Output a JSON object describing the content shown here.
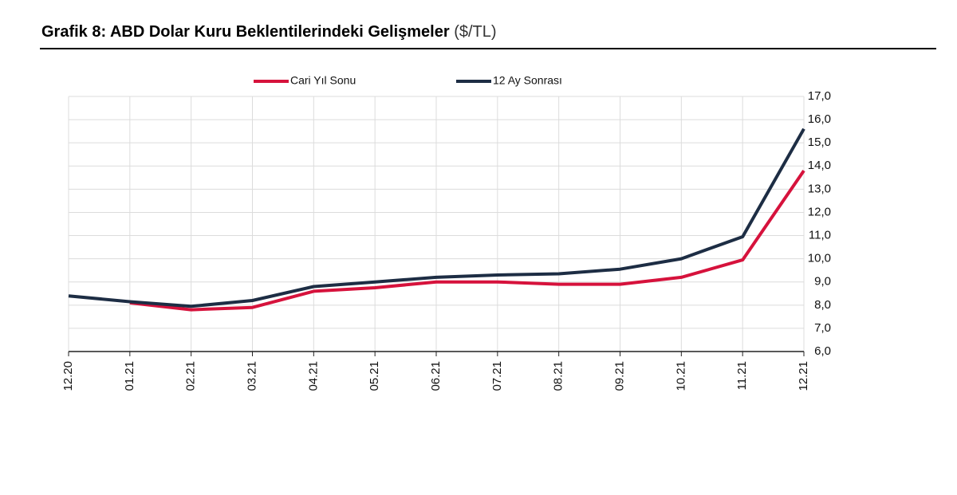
{
  "title": {
    "main": "Grafik 8: ABD Dolar Kuru Beklentilerindeki Gelişmeler",
    "unit": "($/TL)"
  },
  "chart_data": {
    "type": "line",
    "x": [
      "12.20",
      "01.21",
      "02.21",
      "03.21",
      "04.21",
      "05.21",
      "06.21",
      "07.21",
      "08.21",
      "09.21",
      "10.21",
      "11.21",
      "12.21"
    ],
    "ylim": [
      6,
      17
    ],
    "yticks": [
      "17,0",
      "16,0",
      "15,0",
      "14,0",
      "13,0",
      "12,0",
      "11,0",
      "10,0",
      "9,0",
      "8,0",
      "7,0",
      "6,0"
    ],
    "y_axis_position": "right",
    "grid": true,
    "legend_position": "top",
    "series": [
      {
        "name": "Cari Yıl Sonu",
        "color": "#d6123c",
        "values": [
          null,
          8.1,
          7.8,
          7.9,
          8.6,
          8.75,
          9.0,
          9.0,
          8.9,
          8.9,
          9.2,
          9.95,
          13.8
        ]
      },
      {
        "name": "12 Ay Sonrası",
        "color": "#1d2d44",
        "values": [
          8.4,
          8.15,
          7.95,
          8.2,
          8.8,
          9.0,
          9.2,
          9.3,
          9.35,
          9.55,
          10.0,
          10.95,
          15.6
        ]
      }
    ]
  }
}
